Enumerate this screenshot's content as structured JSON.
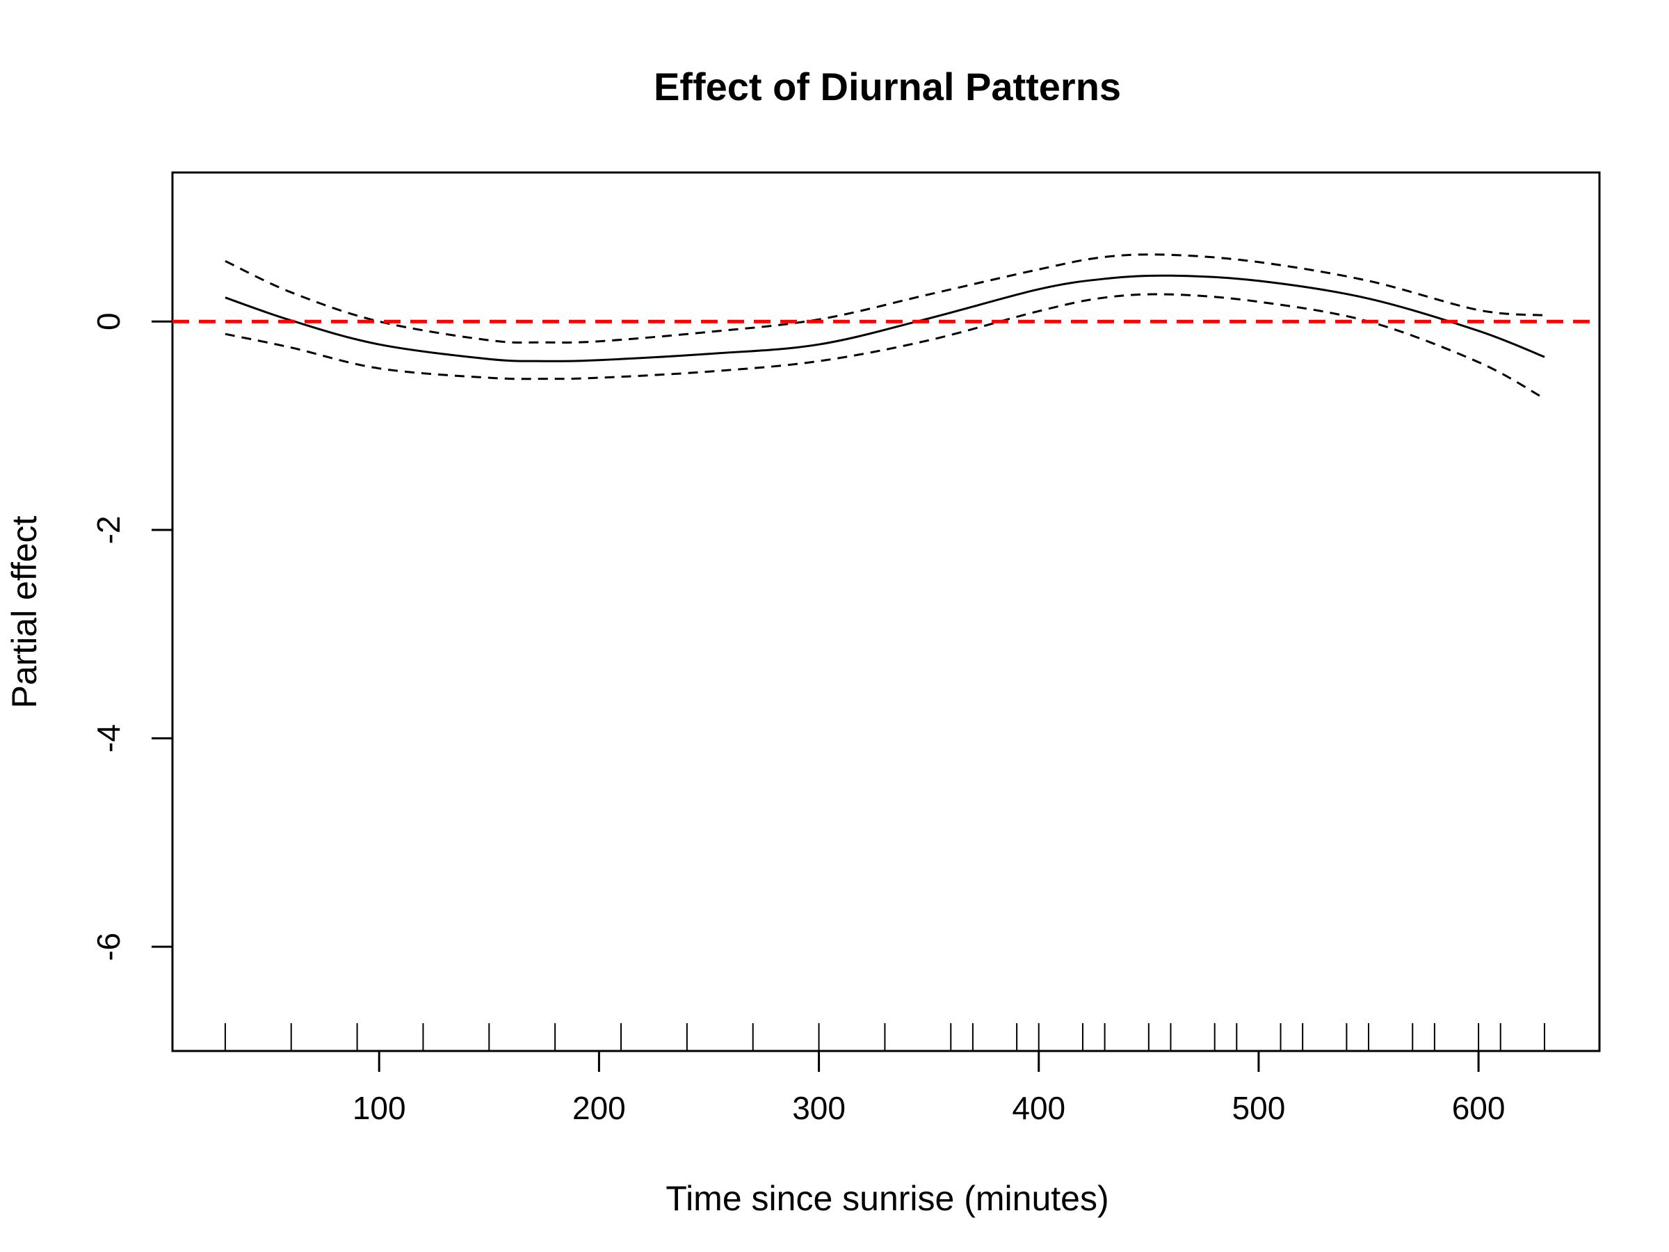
{
  "chart_data": {
    "type": "line",
    "title": "Effect of Diurnal Patterns",
    "xlabel": "Time since sunrise (minutes)",
    "ylabel": "Partial effect",
    "xlim": [
      6,
      655
    ],
    "ylim": [
      -7,
      1.43
    ],
    "x_ticks": [
      100,
      200,
      300,
      400,
      500,
      600
    ],
    "y_ticks": [
      0,
      -2,
      -4,
      -6
    ],
    "reference_line": {
      "y": 0,
      "color": "#ff0000",
      "style": "dashed"
    },
    "series": [
      {
        "role": "estimate",
        "style": "solid",
        "color": "#000000",
        "x": [
          30,
          60,
          100,
          150,
          175,
          200,
          250,
          300,
          350,
          400,
          430,
          460,
          500,
          550,
          600,
          630
        ],
        "y": [
          0.23,
          0.01,
          -0.22,
          -0.36,
          -0.38,
          -0.37,
          -0.31,
          -0.22,
          0.03,
          0.31,
          0.41,
          0.44,
          0.39,
          0.22,
          -0.09,
          -0.34
        ]
      },
      {
        "role": "upper",
        "style": "dashed",
        "color": "#000000",
        "x": [
          30,
          60,
          100,
          150,
          175,
          200,
          250,
          300,
          350,
          400,
          430,
          460,
          500,
          550,
          600,
          630
        ],
        "y": [
          0.58,
          0.28,
          0.0,
          -0.18,
          -0.2,
          -0.19,
          -0.1,
          0.02,
          0.26,
          0.5,
          0.62,
          0.64,
          0.57,
          0.39,
          0.11,
          0.06
        ]
      },
      {
        "role": "lower",
        "style": "dashed",
        "color": "#000000",
        "x": [
          30,
          60,
          100,
          150,
          175,
          200,
          250,
          300,
          350,
          400,
          430,
          460,
          500,
          550,
          600,
          630
        ],
        "y": [
          -0.12,
          -0.25,
          -0.45,
          -0.54,
          -0.55,
          -0.54,
          -0.48,
          -0.38,
          -0.18,
          0.1,
          0.23,
          0.26,
          0.19,
          0.0,
          -0.39,
          -0.74
        ]
      }
    ],
    "rug": [
      30,
      60,
      90,
      120,
      150,
      180,
      210,
      240,
      270,
      300,
      330,
      360,
      370,
      390,
      400,
      420,
      430,
      450,
      460,
      480,
      490,
      510,
      520,
      540,
      550,
      570,
      580,
      600,
      610,
      630
    ]
  }
}
